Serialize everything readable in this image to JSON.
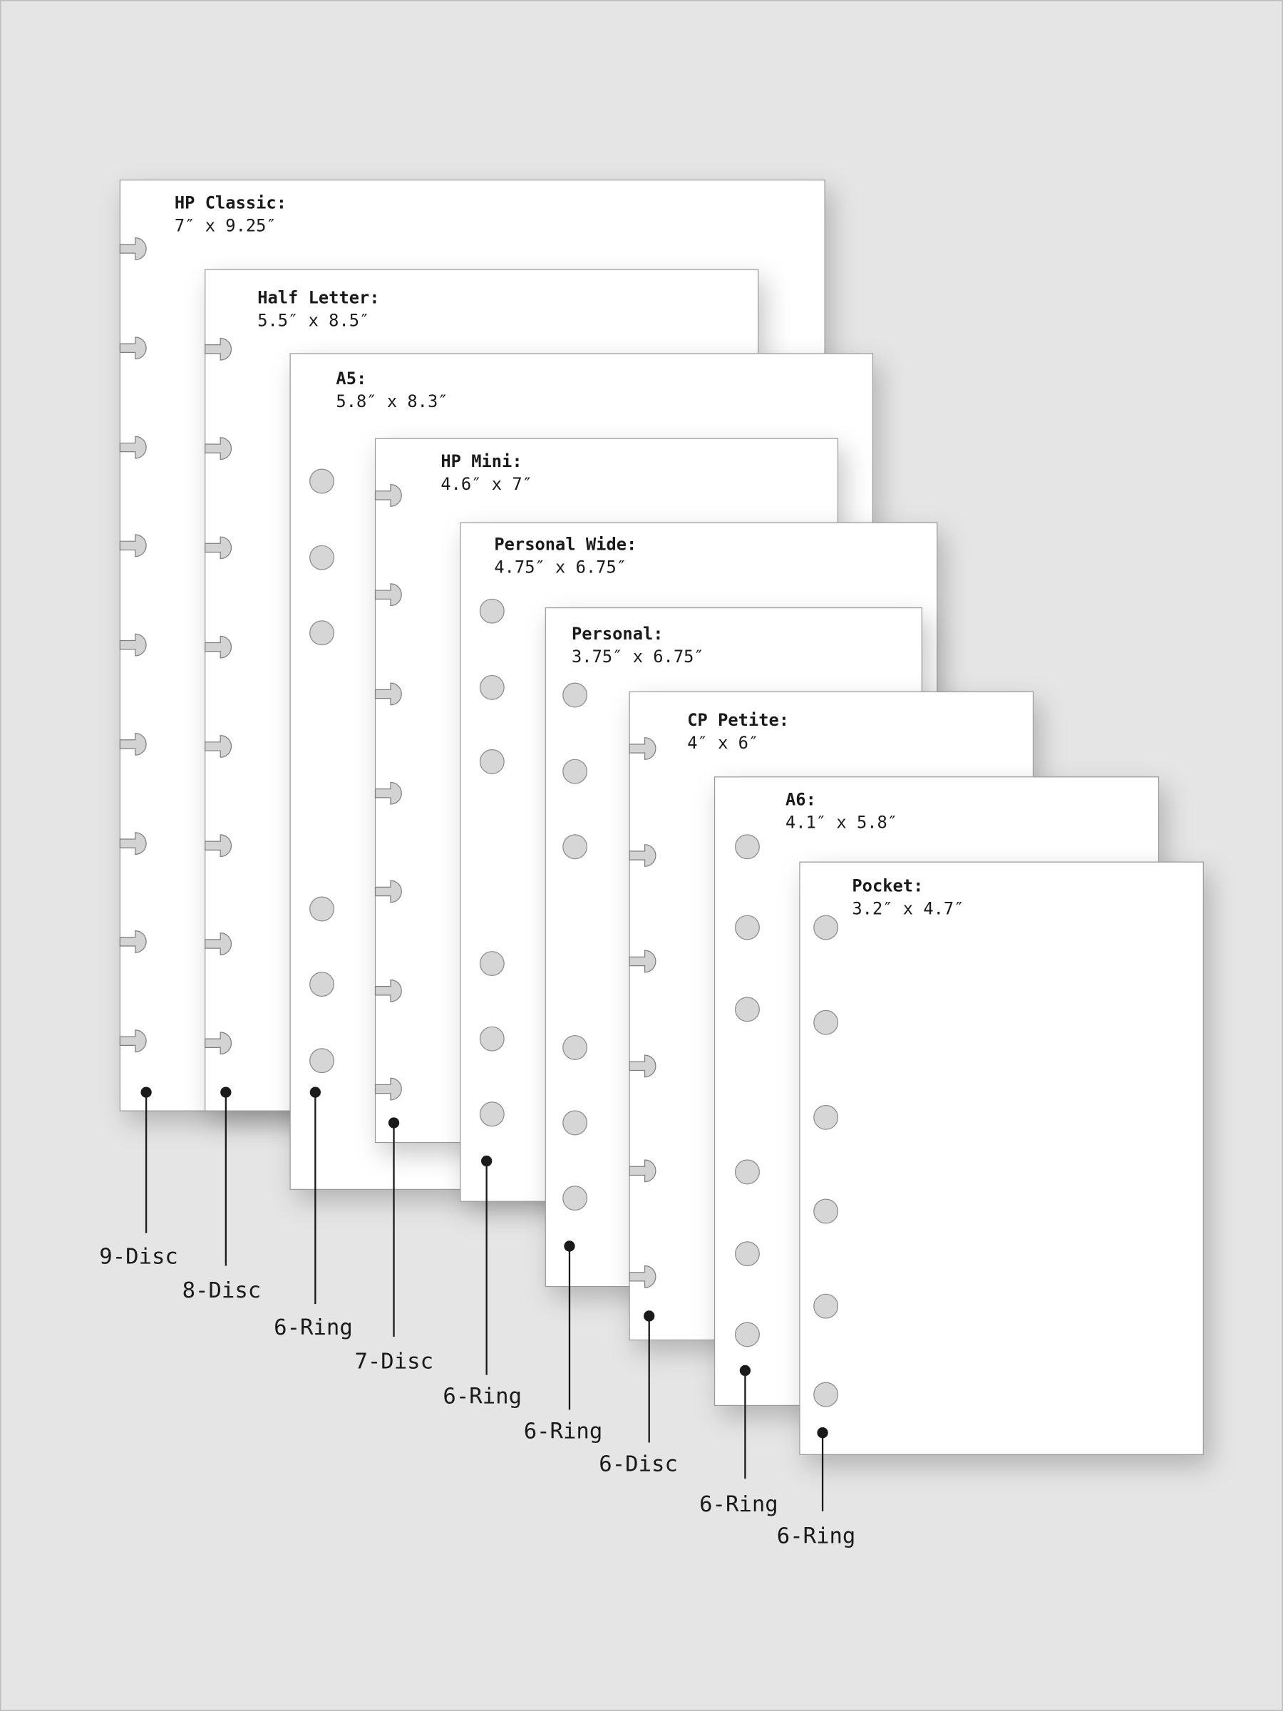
{
  "sheets": [
    {
      "title": "HP Classic:",
      "size": "7″ x 9.25″",
      "binding": "9-Disc"
    },
    {
      "title": "Half Letter:",
      "size": "5.5″ x 8.5″",
      "binding": "8-Disc"
    },
    {
      "title": "A5:",
      "size": "5.8″ x 8.3″",
      "binding": "6-Ring"
    },
    {
      "title": "HP Mini:",
      "size": "4.6″ x 7″",
      "binding": "7-Disc"
    },
    {
      "title": "Personal Wide:",
      "size": "4.75″ x 6.75″",
      "binding": "6-Ring"
    },
    {
      "title": "Personal:",
      "size": "3.75″ x 6.75″",
      "binding": "6-Ring"
    },
    {
      "title": "CP Petite:",
      "size": "4″ x 6″",
      "binding": "6-Disc"
    },
    {
      "title": "A6:",
      "size": "4.1″ x 5.8″",
      "binding": "6-Ring"
    },
    {
      "title": "Pocket:",
      "size": "3.2″ x 4.7″",
      "binding": "6-Ring"
    }
  ]
}
